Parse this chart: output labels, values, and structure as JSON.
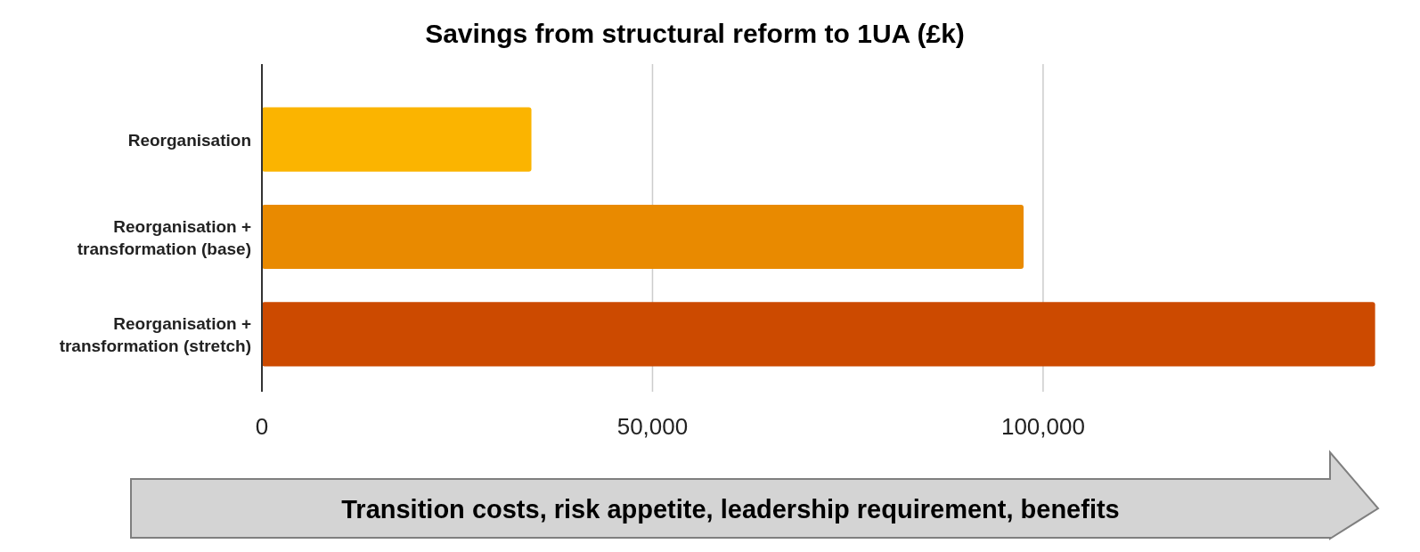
{
  "chart_data": {
    "type": "bar",
    "orientation": "horizontal",
    "title": "Savings from structural reform to 1UA (£k)",
    "categories": [
      "Reorganisation",
      "Reorganisation +\ntransformation (base)",
      "Reorganisation +\ntransformation (stretch)"
    ],
    "values": [
      34500,
      97500,
      142500
    ],
    "colors": [
      "#fbb400",
      "#e98a00",
      "#cc4a00"
    ],
    "xlim": [
      0,
      143000
    ],
    "xticks": [
      0,
      {
        "value": 50000,
        "label": "50,000"
      },
      {
        "value": 100000,
        "label": "100,000"
      }
    ],
    "grid": "x",
    "annotations": [
      "Transition costs, risk appetite, leadership requirement, benefits"
    ]
  }
}
